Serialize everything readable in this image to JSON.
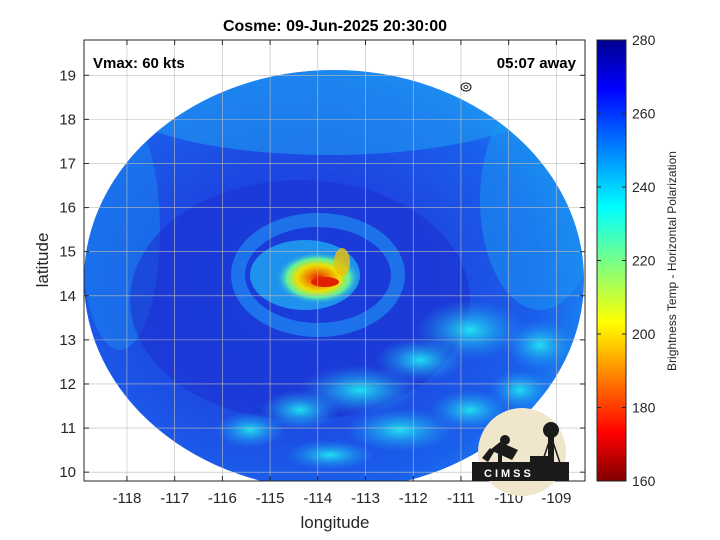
{
  "title": "Cosme: 09-Jun-2025 20:30:00",
  "vmax_label": "Vmax: 60 kts",
  "time_away": "05:07 away",
  "logo_text": "CIMSS",
  "colors": {
    "ocean_cold": "#1e3cd8",
    "ring": "#1f78f0",
    "warm_core": "#f0e000",
    "eye": "#e02000",
    "background_panel": "#ffffff"
  },
  "chart_data": {
    "type": "heatmap",
    "title": "Cosme: 09-Jun-2025 20:30:00",
    "xlabel": "longitude",
    "ylabel": "latitude",
    "xlim": [
      -118.9,
      -108.4
    ],
    "ylim": [
      9.8,
      19.8
    ],
    "x_ticks": [
      -118,
      -117,
      -116,
      -115,
      -114,
      -113,
      -112,
      -111,
      -110,
      -109
    ],
    "x_tick_labels": [
      "-118",
      "-117",
      "-116",
      "-115",
      "-114",
      "-113",
      "-112",
      "-111",
      "-110",
      "-109"
    ],
    "y_ticks": [
      10,
      11,
      12,
      13,
      14,
      15,
      16,
      17,
      18,
      19
    ],
    "y_tick_labels": [
      "10",
      "11",
      "12",
      "13",
      "14",
      "15",
      "16",
      "17",
      "18",
      "19"
    ],
    "grid": true,
    "storm_center": {
      "lon": -113.8,
      "lat": 14.4
    },
    "colorbar": {
      "label": "Brightness Temp - Horizontal Polarization",
      "range": [
        160,
        280
      ],
      "ticks": [
        160,
        180,
        200,
        220,
        240,
        260,
        280
      ],
      "tick_labels": [
        "160",
        "180",
        "200",
        "220",
        "240",
        "260",
        "280"
      ],
      "colormap": "jet",
      "placement": "right"
    }
  }
}
